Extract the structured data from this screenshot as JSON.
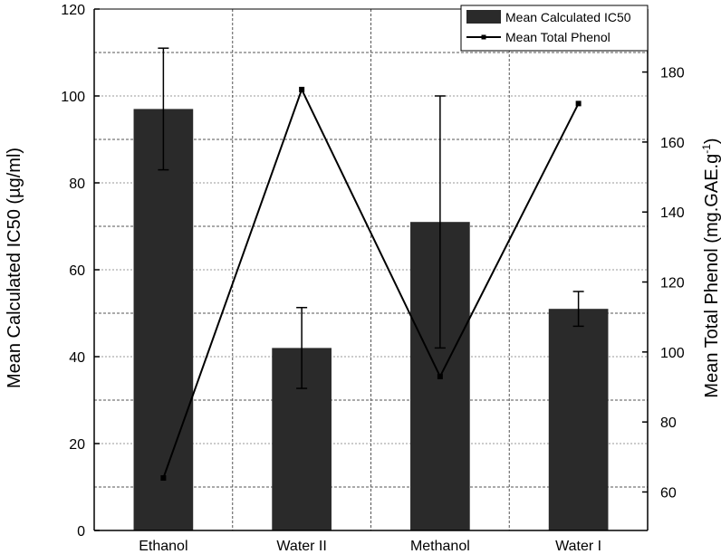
{
  "chart_data": {
    "type": "bar+line",
    "categories": [
      "Ethanol",
      "Water II",
      "Methanol",
      "Water I"
    ],
    "series": [
      {
        "name": "Mean Calculated IC50",
        "kind": "bar",
        "axis": "left",
        "values": [
          97,
          42,
          71,
          51
        ],
        "error": [
          14,
          9.3,
          29,
          4
        ],
        "color": "#2a2a2a"
      },
      {
        "name": "Mean Total Phenol",
        "kind": "line",
        "axis": "right",
        "values": [
          64,
          175,
          93,
          171
        ],
        "color": "#000000"
      }
    ],
    "ylabel": "Mean Calculated IC50 (µg/ml)",
    "y2label_main": "Mean Total Phenol (mg.GAE.g",
    "y2label_sup": "-1",
    "y2label_end": ")",
    "ylim": [
      0,
      120
    ],
    "yticks": [
      "0",
      "20",
      "40",
      "60",
      "80",
      "100",
      "120"
    ],
    "y2lim": [
      49,
      198
    ],
    "y2ticks": [
      "60",
      "80",
      "100",
      "120",
      "140",
      "160",
      "180"
    ],
    "grid": true,
    "legend_position": "top-right"
  }
}
